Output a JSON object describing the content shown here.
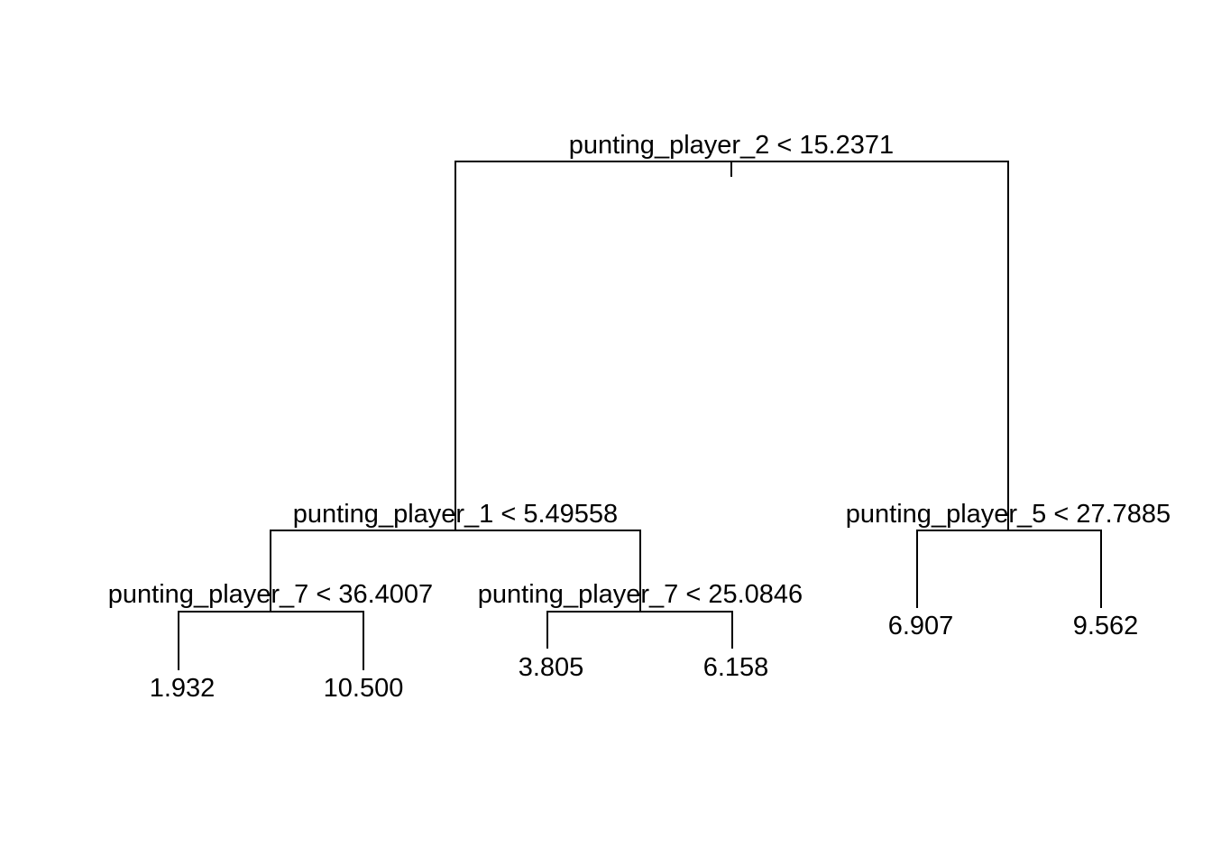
{
  "tree": {
    "split_root": "punting_player_2 < 15.2371",
    "split_left": "punting_player_1 < 5.49558",
    "split_right": "punting_player_5 < 27.7885",
    "split_left_left": "punting_player_7 < 36.4007",
    "split_left_right": "punting_player_7 < 25.0846",
    "leaves": [
      "1.932",
      "10.500",
      "3.805",
      "6.158",
      "6.907",
      "9.562"
    ]
  }
}
